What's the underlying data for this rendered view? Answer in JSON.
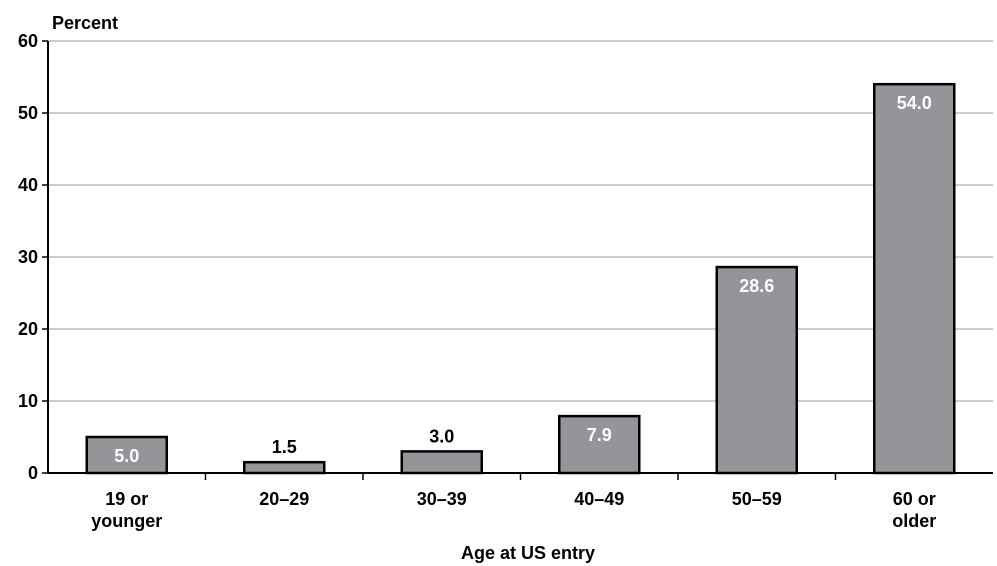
{
  "chart_data": {
    "type": "bar",
    "title": "",
    "ylabel": "Percent",
    "xlabel": "Age at US entry",
    "categories": [
      [
        "19 or",
        "younger"
      ],
      [
        "20–29"
      ],
      [
        "30–39"
      ],
      [
        "40–49"
      ],
      [
        "50–59"
      ],
      [
        "60 or",
        "older"
      ]
    ],
    "values": [
      5.0,
      1.5,
      3.0,
      7.9,
      28.6,
      54.0
    ],
    "value_labels": [
      "5.0",
      "1.5",
      "3.0",
      "7.9",
      "28.6",
      "54.0"
    ],
    "ylim": [
      0,
      60
    ],
    "yticks": [
      "0",
      "10",
      "20",
      "30",
      "40",
      "50",
      "60"
    ],
    "grid": true,
    "legend": "none",
    "colors": {
      "bar_fill": "#939598",
      "bar_stroke": "#000000",
      "grid": "#9a9a9a",
      "label_inside": "#ffffff",
      "label_outside": "#000000"
    }
  }
}
